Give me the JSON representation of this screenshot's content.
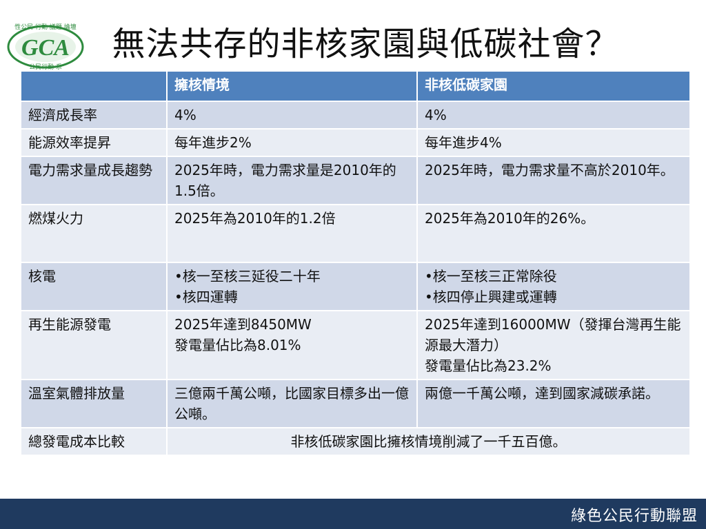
{
  "slide": {
    "title": "無法共存的非核家園與低碳社會？",
    "footer": "綠色公民行動聯盟"
  },
  "logo": {
    "icon": "gca-logo",
    "text_top": "性公民 行動 議題 論壇",
    "text_bottom": "公民行動 系",
    "mark": "GCA"
  },
  "table": {
    "headers": [
      "",
      "擁核情境",
      "非核低碳家園"
    ],
    "rows": [
      {
        "label": "經濟成長率",
        "a": [
          " 4%"
        ],
        "b": [
          " 4%"
        ]
      },
      {
        "label": "能源效率提昇",
        "a": [
          "每年進步2%"
        ],
        "b": [
          " 每年進步4%"
        ]
      },
      {
        "label": "電力需求量成長趨勢",
        "a": [
          "2025年時，電力需求量是2010年的1.5倍。"
        ],
        "b": [
          "2025年時，電力需求量不高於2010年。"
        ]
      },
      {
        "label": "燃煤火力",
        "a": [
          "2025年為2010年的1.2倍"
        ],
        "b": [
          "2025年為2010年的26%。"
        ]
      },
      {
        "label": "核電",
        "a": [
          "核一至核三延役二十年",
          "核四運轉"
        ],
        "b": [
          "核一至核三正常除役",
          "核四停止興建或運轉"
        ]
      },
      {
        "label": "再生能源發電",
        "a": [
          "2025年達到8450MW",
          "發電量佔比為8.01%"
        ],
        "b": [
          "2025年達到16000MW（發揮台灣再生能源最大潛力）",
          "發電量佔比為23.2%"
        ]
      },
      {
        "label": "溫室氣體排放量",
        "a": [
          "三億兩千萬公噸，比國家目標多出一億公噸。"
        ],
        "b": [
          "兩億一千萬公噸，達到國家減碳承諾。"
        ]
      },
      {
        "label": "總發電成本比較",
        "merged": "非核低碳家園比擁核情境削減了一千五百億。"
      }
    ]
  },
  "colors": {
    "header_bg": "#4f81bd",
    "row_dark": "#d0d8e8",
    "row_light": "#e9edf4",
    "footer_bg": "#1f3a5f",
    "logo_green": "#2e8b3e"
  }
}
